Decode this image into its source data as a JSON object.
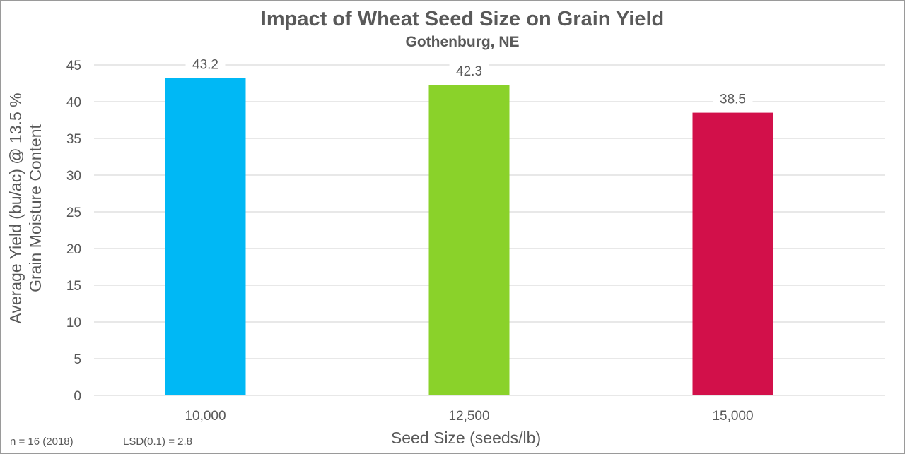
{
  "chart_data": {
    "type": "bar",
    "title": "Impact of Wheat Seed Size on Grain Yield",
    "subtitle": "Gothenburg, NE",
    "xlabel": "Seed Size (seeds/lb)",
    "ylabel_lines": [
      "Average Yield (bu/ac) @ 13.5 %",
      "Grain Moisture Content"
    ],
    "categories": [
      "10,000",
      "12,500",
      "15,000"
    ],
    "values": [
      43.2,
      42.3,
      38.5
    ],
    "data_labels": [
      "43.2",
      "42.3",
      "38.5"
    ],
    "colors": [
      "#00B8F5",
      "#8AD22A",
      "#D2104A"
    ],
    "ylim": [
      0,
      45
    ],
    "yticks": [
      "0",
      "5",
      "10",
      "15",
      "20",
      "25",
      "30",
      "35",
      "40",
      "45"
    ],
    "grid": true,
    "legend": "none",
    "annotations": [
      "n = 16 (2018)",
      "LSD(0.1) = 2.8"
    ]
  }
}
